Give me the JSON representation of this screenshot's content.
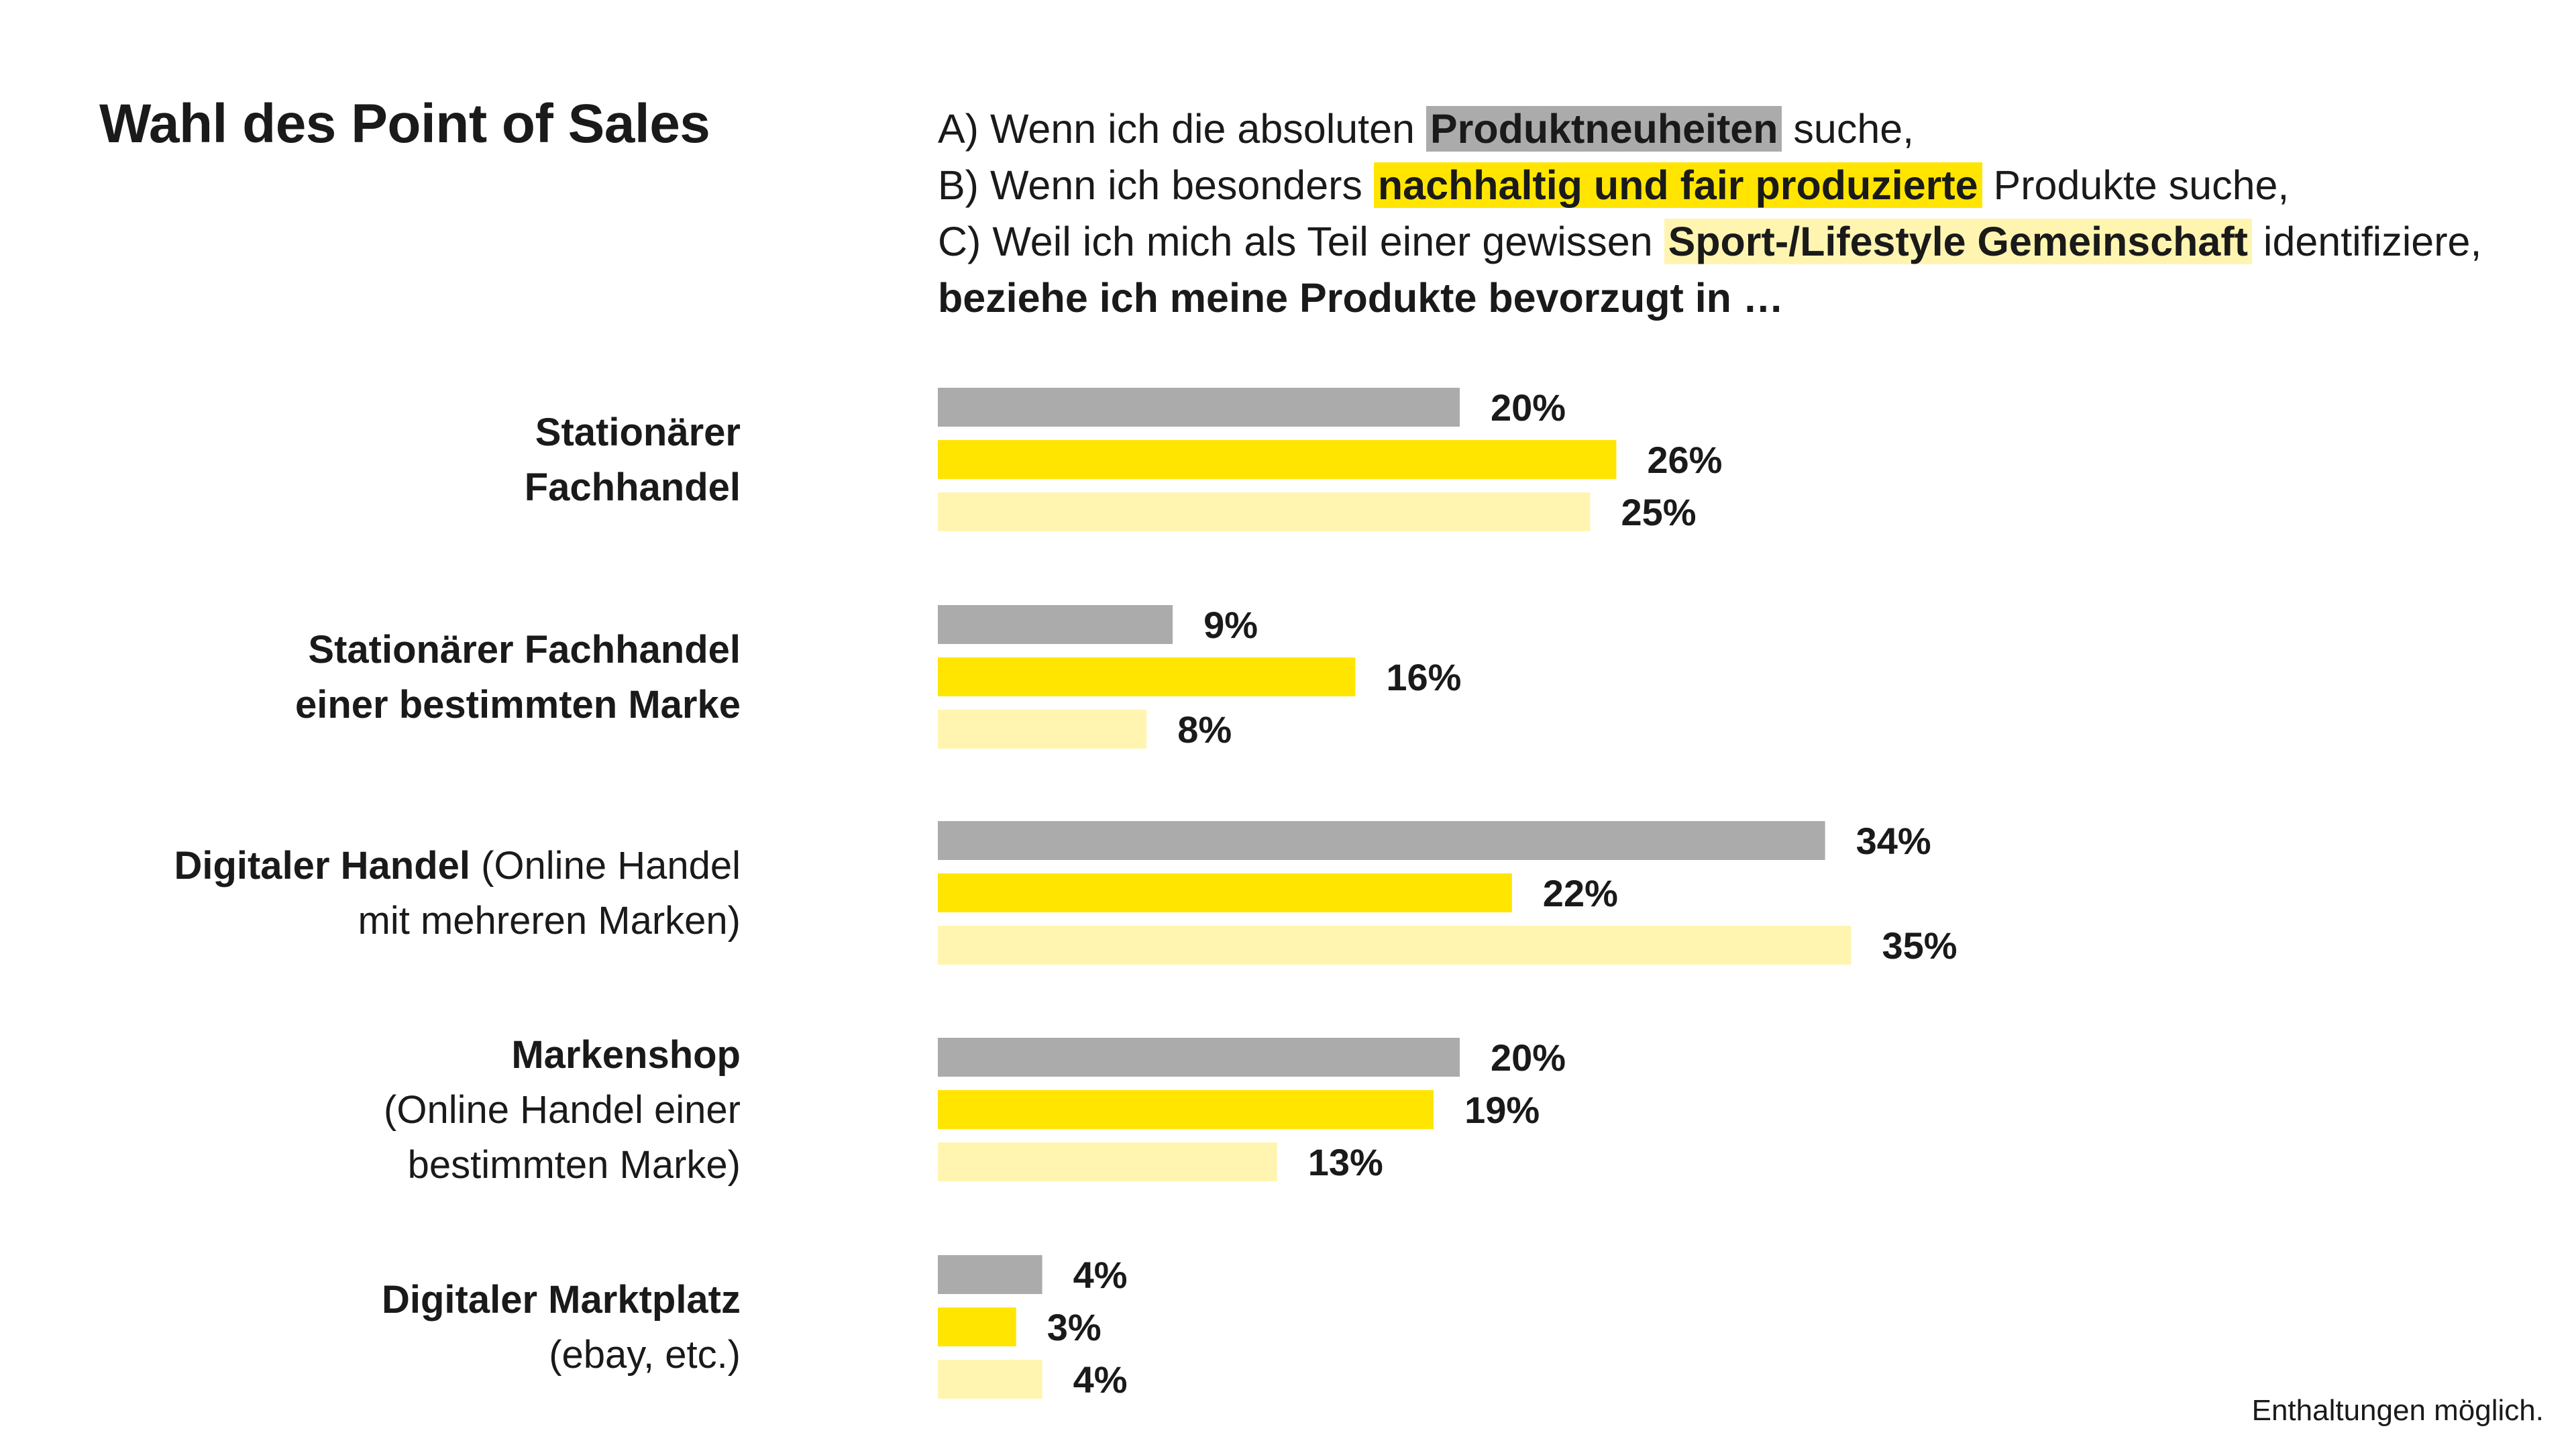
{
  "title": "Wahl des Point of Sales",
  "legend": {
    "a": {
      "before": "A) Wenn ich die absoluten ",
      "highlight": "Produktneuheiten",
      "after": " suche,",
      "color": "#ababab"
    },
    "b": {
      "before": "B) Wenn ich besonders ",
      "highlight": "nachhaltig und fair produzierte",
      "after": " Produkte suche,",
      "color": "#ffe500"
    },
    "c": {
      "before": "C) Weil ich mich als Teil einer gewissen ",
      "highlight": "Sport-/Lifestyle Gemeinschaft",
      "after": " identifiziere,",
      "color": "#fff5b1"
    },
    "lead": "beziehe ich meine Produkte bevorzugt in …"
  },
  "note": "Enthaltungen möglich.",
  "chart_data": {
    "type": "bar",
    "orientation": "horizontal",
    "value_suffix": "%",
    "categories": [
      {
        "lines": [
          {
            "parts": [
              {
                "text": "Stationärer",
                "bold": true
              }
            ]
          },
          {
            "parts": [
              {
                "text": "Fachhandel",
                "bold": true
              }
            ]
          }
        ]
      },
      {
        "lines": [
          {
            "parts": [
              {
                "text": "Stationärer Fachhandel",
                "bold": true
              }
            ]
          },
          {
            "parts": [
              {
                "text": "einer bestimmten Marke",
                "bold": true
              }
            ]
          }
        ]
      },
      {
        "lines": [
          {
            "parts": [
              {
                "text": "Digitaler Handel",
                "bold": true
              },
              {
                "text": " (Online Handel",
                "bold": false
              }
            ]
          },
          {
            "parts": [
              {
                "text": "mit mehreren Marken)",
                "bold": false
              }
            ]
          }
        ]
      },
      {
        "lines": [
          {
            "parts": [
              {
                "text": "Markenshop",
                "bold": true
              }
            ]
          },
          {
            "parts": [
              {
                "text": "(Online Handel einer",
                "bold": false
              }
            ]
          },
          {
            "parts": [
              {
                "text": "bestimmten Marke)",
                "bold": false
              }
            ]
          }
        ]
      },
      {
        "lines": [
          {
            "parts": [
              {
                "text": "Digitaler Marktplatz",
                "bold": true
              }
            ]
          },
          {
            "parts": [
              {
                "text": "(ebay, etc.)",
                "bold": false
              }
            ]
          }
        ]
      }
    ],
    "series": [
      {
        "color": "#ababab",
        "values": [
          20,
          9,
          34,
          20,
          4
        ]
      },
      {
        "color": "#ffe500",
        "values": [
          26,
          16,
          22,
          19,
          3
        ]
      },
      {
        "color": "#fff5b1",
        "values": [
          25,
          8,
          35,
          13,
          4
        ]
      }
    ],
    "xlim": [
      0,
      35
    ],
    "grid": false,
    "legend_position": "top"
  }
}
